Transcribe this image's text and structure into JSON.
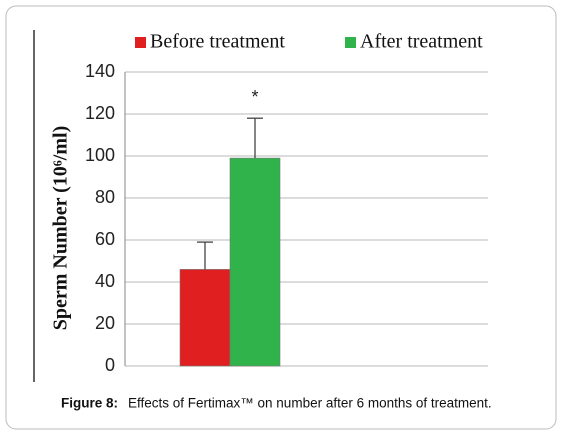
{
  "chart_data": {
    "type": "bar",
    "y_label": "Sperm Number (10⁶/ml)",
    "categories": [
      null
    ],
    "series": [
      {
        "name": "Before treatment",
        "color": "#e02020",
        "values": [
          46
        ],
        "errors": [
          13
        ]
      },
      {
        "name": "After treatment",
        "color": "#2fb34a",
        "values": [
          99
        ],
        "errors": [
          19
        ]
      }
    ],
    "annotations": [
      "*"
    ],
    "ylim": [
      0,
      140
    ],
    "yticks": [
      0,
      20,
      40,
      60,
      80,
      100,
      120,
      140
    ],
    "grid": true,
    "legend": "top"
  },
  "caption": {
    "label": "Figure 8:",
    "text": "Effects of Fertimax™ on number after 6 months of treatment."
  }
}
